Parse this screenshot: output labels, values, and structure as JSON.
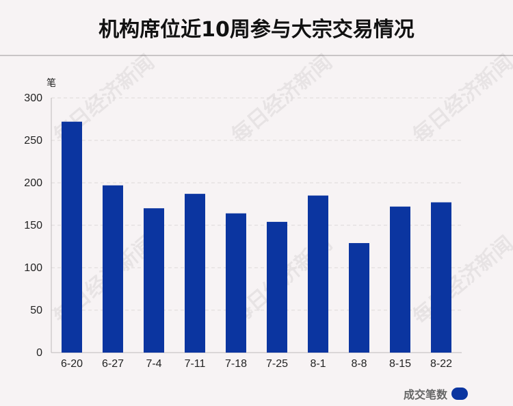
{
  "title": "机构席位近10周参与大宗交易情况",
  "watermark": "每日经济新闻",
  "legend": {
    "label": "成交笔数",
    "color": "#0b35a0"
  },
  "chart_data": {
    "type": "bar",
    "title": "机构席位近10周参与大宗交易情况",
    "ylabel": "笔",
    "xlabel": "",
    "categories": [
      "6-20",
      "6-27",
      "7-4",
      "7-11",
      "7-18",
      "7-25",
      "8-1",
      "8-8",
      "8-15",
      "8-22"
    ],
    "series": [
      {
        "name": "成交笔数",
        "values": [
          272,
          197,
          170,
          187,
          164,
          154,
          185,
          129,
          172,
          177
        ]
      }
    ],
    "ylim": [
      0,
      300
    ],
    "yticks": [
      0,
      50,
      100,
      150,
      200,
      250,
      300
    ],
    "grid": true,
    "legend_position": "bottom-right",
    "bar_color": "#0b35a0"
  }
}
